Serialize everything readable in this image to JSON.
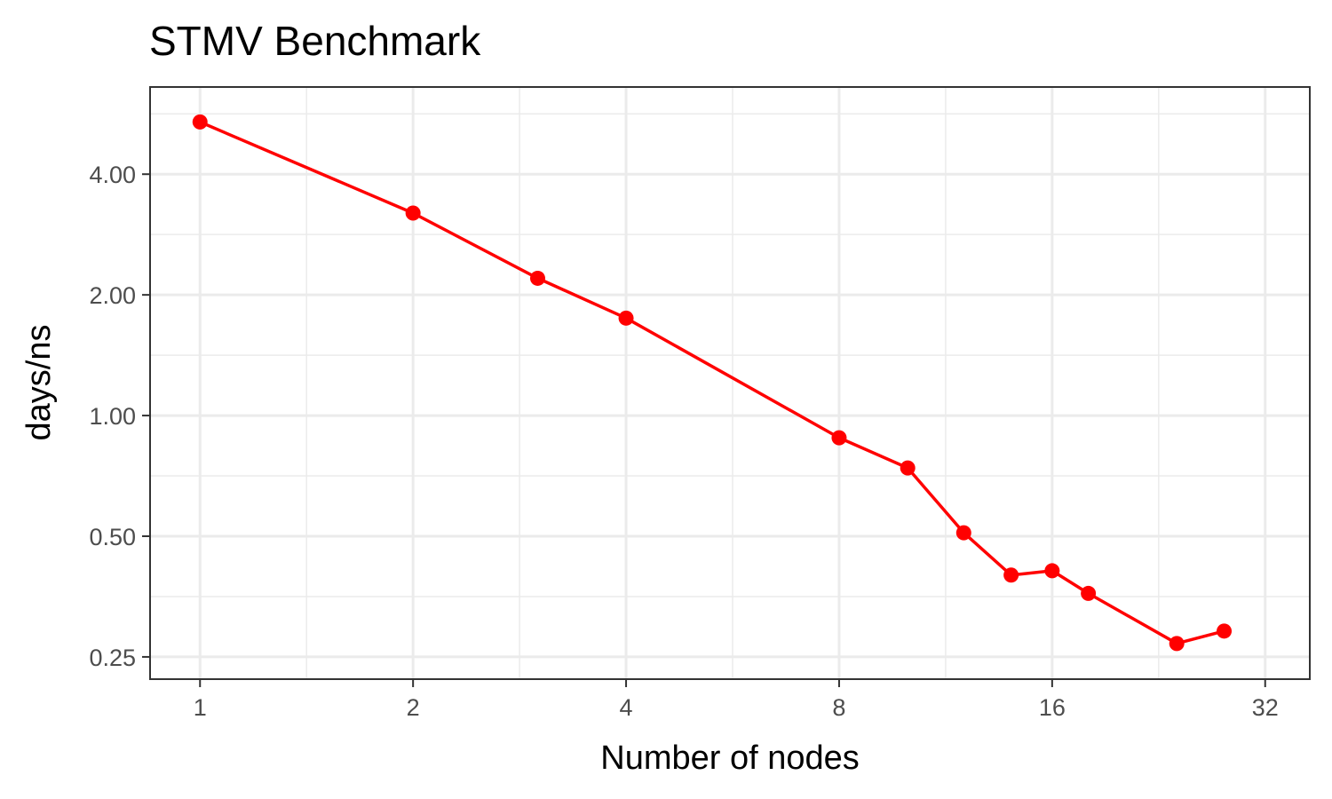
{
  "chart_data": {
    "type": "line",
    "title": "STMV Benchmark",
    "xlabel": "Number of nodes",
    "ylabel": "days/ns",
    "x_scale": "log2",
    "y_scale": "log2",
    "x_ticks": [
      1,
      2,
      4,
      8,
      16,
      32
    ],
    "x_tick_labels": [
      "1",
      "2",
      "4",
      "8",
      "16",
      "32"
    ],
    "y_ticks": [
      0.25,
      0.5,
      1,
      2,
      4
    ],
    "y_tick_labels": [
      "0.25",
      "0.50",
      "1.00",
      "2.00",
      "4.00"
    ],
    "xlim": [
      0.85,
      37
    ],
    "ylim": [
      0.22,
      6.6
    ],
    "grid": true,
    "color": "#ff0000",
    "series": [
      {
        "x": [
          1,
          2,
          3,
          4,
          8,
          10,
          12,
          14,
          16,
          18,
          24,
          28
        ],
        "y": [
          5.4,
          3.2,
          2.2,
          1.75,
          0.88,
          0.74,
          0.51,
          0.4,
          0.41,
          0.36,
          0.27,
          0.29
        ]
      }
    ]
  }
}
